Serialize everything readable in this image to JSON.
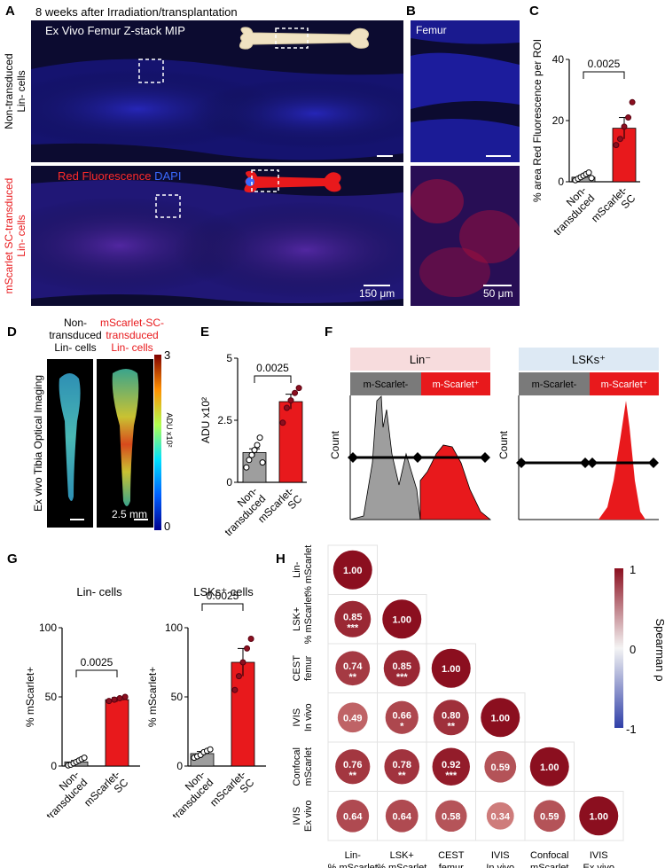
{
  "panel_labels": {
    "a": "A",
    "b": "B",
    "c": "C",
    "d": "D",
    "e": "E",
    "f": "F",
    "g": "G",
    "h": "H"
  },
  "panelA": {
    "header": "8 weeks after Irradiation/transplantation",
    "top_title": "Ex Vivo Femur Z-stack MIP",
    "row1_label": [
      "Non-transduced",
      "Lin- cells"
    ],
    "row2_label": [
      "mScarlet SC-transduced",
      "Lin- cells"
    ],
    "legend_red": "Red Fluorescence",
    "legend_blue": "DAPI",
    "scale": "150 μm"
  },
  "panelB": {
    "title": "Femur",
    "scale": "50 μm"
  },
  "panelD": {
    "col1": [
      "Non-",
      "transduced",
      "Lin- cells"
    ],
    "col2": [
      "mScarlet-SC-",
      "transduced",
      "Lin- cells"
    ],
    "side_label": "Ex vivo Tibia Optical Imaging",
    "scale": "2.5 mm",
    "colorbar_max": "3",
    "colorbar_min": "0",
    "colorbar_label": "ADU x10²"
  },
  "panelF": {
    "left_title": "Lin⁻",
    "right_title": "LSKs⁺",
    "neg_label": "m-Scarlet-",
    "pos_label": "m-Scarlet⁺",
    "y_label": "Count"
  },
  "panelH": {
    "colorbar_max": "1",
    "colorbar_mid": "0",
    "colorbar_min": "-1",
    "colorbar_label": "Spearman ρ"
  },
  "colors": {
    "red": "#e8191c",
    "grey": "#9e9e9e",
    "navy": "#0a0a2e"
  },
  "chart_data": [
    {
      "id": "C",
      "type": "bar",
      "ylabel": "% area Red Fluorescence per ROI",
      "categories": [
        "Non-transduced",
        "mScarlet-SC"
      ],
      "values": [
        1.5,
        17.5
      ],
      "ylim": [
        0,
        40
      ],
      "yticks": [
        0,
        20,
        40
      ],
      "points": [
        [
          0.5,
          1,
          1.5,
          2,
          2.5,
          3,
          1.2
        ],
        [
          12,
          14,
          18,
          21,
          26
        ]
      ],
      "pvalue": "0.0025"
    },
    {
      "id": "E",
      "type": "bar",
      "ylabel": "ADU x10²",
      "categories": [
        "Non-transduced",
        "mScarlet-SC"
      ],
      "values": [
        1.2,
        3.25
      ],
      "ylim": [
        0,
        5
      ],
      "yticks": [
        0,
        2.5,
        5
      ],
      "ytick_labels": [
        "0",
        "2.5",
        "5"
      ],
      "points": [
        [
          0.6,
          0.9,
          1.1,
          1.3,
          1.5,
          1.8,
          0.8
        ],
        [
          2.4,
          3.0,
          3.3,
          3.6,
          3.8
        ]
      ],
      "pvalue": "0.0025"
    },
    {
      "id": "G1",
      "type": "bar",
      "title": "Lin- cells",
      "ylabel": "% mScarlet+",
      "categories": [
        "Non-transduced",
        "mScarlet-SC"
      ],
      "values": [
        3,
        48
      ],
      "ylim": [
        0,
        100
      ],
      "yticks": [
        0,
        50,
        100
      ],
      "points": [
        [
          0.5,
          1,
          2,
          3,
          4,
          5,
          6
        ],
        [
          47,
          48,
          49,
          50
        ]
      ],
      "pvalue": "0.0025"
    },
    {
      "id": "G2",
      "type": "bar",
      "title": "LSKs⁺ cells",
      "ylabel": "% mScarlet+",
      "categories": [
        "Non-transduced",
        "mScarlet-SC"
      ],
      "values": [
        9,
        75
      ],
      "ylim": [
        0,
        100
      ],
      "yticks": [
        0,
        50,
        100
      ],
      "points": [
        [
          6,
          7,
          8,
          10,
          11,
          12
        ],
        [
          55,
          65,
          75,
          85,
          92
        ]
      ],
      "pvalue": "0.0025"
    },
    {
      "id": "H",
      "type": "heatmap",
      "labels": [
        "Lin- % mScarlet",
        "LSK+ % mScarlet",
        "CEST femur",
        "IVIS In vivo",
        "Confocal mScarlet",
        "IVIS Ex vivo"
      ],
      "row_labels": [
        [
          "Lin-",
          "% mScarlet"
        ],
        [
          "LSK+",
          "% mScarlet"
        ],
        [
          "CEST",
          "femur"
        ],
        [
          "IVIS",
          "In vivo"
        ],
        [
          "Confocal",
          "mScarlet"
        ],
        [
          "IVIS",
          "Ex vivo"
        ]
      ],
      "col_labels": [
        [
          "Lin-",
          "% mScarlet"
        ],
        [
          "LSK+",
          "% mScarlet"
        ],
        [
          "CEST",
          "femur"
        ],
        [
          "IVIS",
          "In vivo"
        ],
        [
          "Confocal",
          "mScarlet"
        ],
        [
          "IVIS",
          "Ex vivo"
        ]
      ],
      "values": [
        [
          1.0
        ],
        [
          0.85,
          1.0
        ],
        [
          0.74,
          0.85,
          1.0
        ],
        [
          0.49,
          0.66,
          0.8,
          1.0
        ],
        [
          0.76,
          0.78,
          0.92,
          0.59,
          1.0
        ],
        [
          0.64,
          0.64,
          0.58,
          0.34,
          0.59,
          1.0
        ]
      ],
      "value_labels": [
        [
          "1.00"
        ],
        [
          "0.85",
          "1.00"
        ],
        [
          "0.74",
          "0.85",
          "1.00"
        ],
        [
          "0.49",
          "0.66",
          "0.80",
          "1.00"
        ],
        [
          "0.76",
          "0.78",
          "0.92",
          "0.59",
          "1.00"
        ],
        [
          "0.64",
          "0.64",
          "0.58",
          "0.34",
          "0.59",
          "1.00"
        ]
      ],
      "stars": [
        [
          ""
        ],
        [
          "***",
          ""
        ],
        [
          "**",
          "***",
          ""
        ],
        [
          "",
          "*",
          "**",
          ""
        ],
        [
          "**",
          "**",
          "***",
          "",
          ""
        ],
        [
          "",
          "",
          "",
          "",
          "",
          ""
        ]
      ]
    }
  ]
}
